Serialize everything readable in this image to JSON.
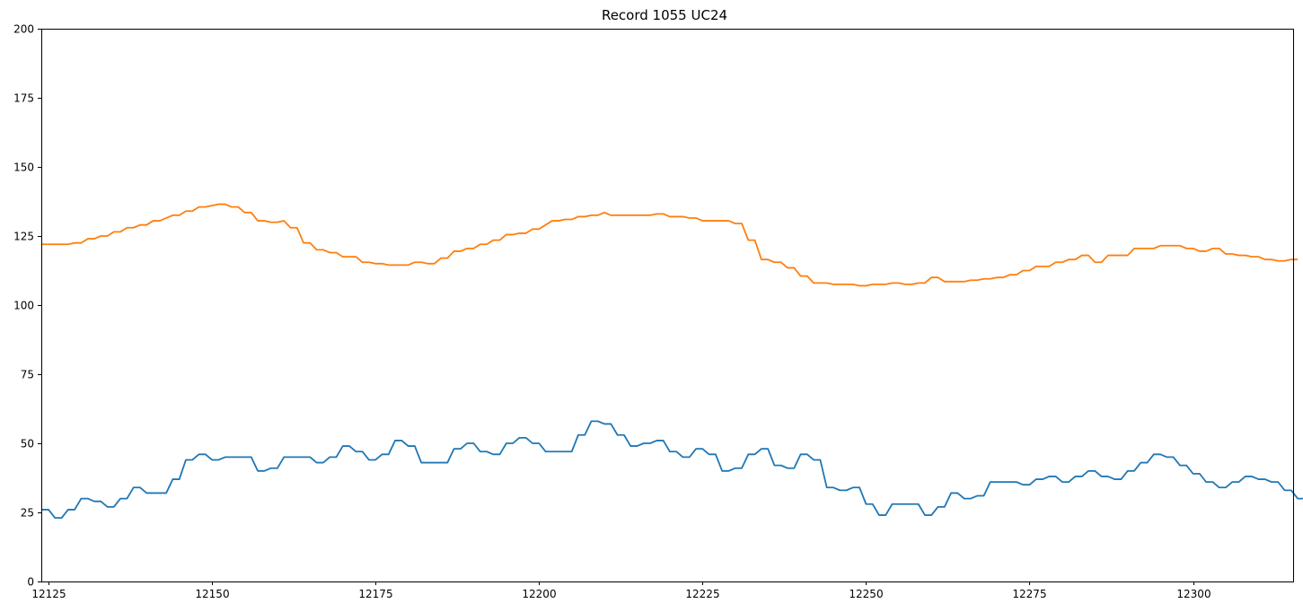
{
  "chart_data": {
    "type": "line",
    "title": "Record 1055 UC24",
    "xlabel": "",
    "ylabel": "",
    "xlim": [
      12123.9,
      12315.3
    ],
    "ylim": [
      0,
      200
    ],
    "xticks": [
      12125,
      12150,
      12175,
      12200,
      12225,
      12250,
      12275,
      12300
    ],
    "yticks": [
      0,
      25,
      50,
      75,
      100,
      125,
      150,
      175,
      200
    ],
    "grid": false,
    "legend": "none",
    "x_start": 12124,
    "x_step": 1,
    "series": [
      {
        "color": "#ff7f0e",
        "values": [
          122,
          122,
          122,
          122,
          122,
          122.5,
          122.5,
          124,
          124,
          125,
          125,
          126.5,
          126.5,
          128,
          128,
          129,
          129,
          130.5,
          130.5,
          131.5,
          132.5,
          132.5,
          134,
          134,
          135.5,
          135.5,
          136,
          136.5,
          136.5,
          135.5,
          135.5,
          133.5,
          133.5,
          130.5,
          130.5,
          130,
          130,
          130.5,
          128,
          128,
          122.5,
          122.5,
          120,
          120,
          119,
          119,
          117.5,
          117.5,
          117.5,
          115.5,
          115.5,
          115,
          115,
          114.5,
          114.5,
          114.5,
          114.5,
          115.5,
          115.5,
          115,
          115,
          117,
          117,
          119.5,
          119.5,
          120.5,
          120.5,
          122,
          122,
          123.5,
          123.5,
          125.5,
          125.5,
          126,
          126,
          127.5,
          127.5,
          129,
          130.5,
          130.5,
          131,
          131,
          132,
          132,
          132.5,
          132.5,
          133.5,
          132.5,
          132.5,
          132.5,
          132.5,
          132.5,
          132.5,
          132.5,
          133,
          133,
          132,
          132,
          132,
          131.5,
          131.5,
          130.5,
          130.5,
          130.5,
          130.5,
          130.5,
          129.5,
          129.5,
          123.5,
          123.5,
          116.5,
          116.5,
          115.5,
          115.5,
          113.5,
          113.5,
          110.5,
          110.5,
          108,
          108,
          108,
          107.5,
          107.5,
          107.5,
          107.5,
          107,
          107,
          107.5,
          107.5,
          107.5,
          108,
          108,
          107.5,
          107.5,
          108,
          108,
          110,
          110,
          108.5,
          108.5,
          108.5,
          108.5,
          109,
          109,
          109.5,
          109.5,
          110,
          110,
          111,
          111,
          112.5,
          112.5,
          114,
          114,
          114,
          115.5,
          115.5,
          116.5,
          116.5,
          118,
          118,
          115.5,
          115.5,
          118,
          118,
          118,
          118,
          120.5,
          120.5,
          120.5,
          120.5,
          121.5,
          121.5,
          121.5,
          121.5,
          120.5,
          120.5,
          119.5,
          119.5,
          120.5,
          120.5,
          118.5,
          118.5,
          118,
          118,
          117.5,
          117.5,
          116.5,
          116.5,
          116,
          116,
          116.5,
          116.5
        ]
      },
      {
        "color": "#1f77b4",
        "values": [
          26,
          26,
          23,
          23,
          26,
          26,
          30,
          30,
          29,
          29,
          27,
          27,
          30,
          30,
          34,
          34,
          32,
          32,
          32,
          32,
          37,
          37,
          44,
          44,
          46,
          46,
          44,
          44,
          45,
          45,
          45,
          45,
          45,
          40,
          40,
          41,
          41,
          45,
          45,
          45,
          45,
          45,
          43,
          43,
          45,
          45,
          49,
          49,
          47,
          47,
          44,
          44,
          46,
          46,
          51,
          51,
          49,
          49,
          43,
          43,
          43,
          43,
          43,
          48,
          48,
          50,
          50,
          47,
          47,
          46,
          46,
          50,
          50,
          52,
          52,
          50,
          50,
          47,
          47,
          47,
          47,
          47,
          53,
          53,
          58,
          58,
          57,
          57,
          53,
          53,
          49,
          49,
          50,
          50,
          51,
          51,
          47,
          47,
          45,
          45,
          48,
          48,
          46,
          46,
          40,
          40,
          41,
          41,
          46,
          46,
          48,
          48,
          42,
          42,
          41,
          41,
          46,
          46,
          44,
          44,
          34,
          34,
          33,
          33,
          34,
          34,
          28,
          28,
          24,
          24,
          28,
          28,
          28,
          28,
          28,
          24,
          24,
          27,
          27,
          32,
          32,
          30,
          30,
          31,
          31,
          36,
          36,
          36,
          36,
          36,
          35,
          35,
          37,
          37,
          38,
          38,
          36,
          36,
          38,
          38,
          40,
          40,
          38,
          38,
          37,
          37,
          40,
          40,
          43,
          43,
          46,
          46,
          45,
          45,
          42,
          42,
          39,
          39,
          36,
          36,
          34,
          34,
          36,
          36,
          38,
          38,
          37,
          37,
          36,
          36,
          33,
          33,
          30,
          30,
          29,
          29
        ]
      }
    ]
  }
}
